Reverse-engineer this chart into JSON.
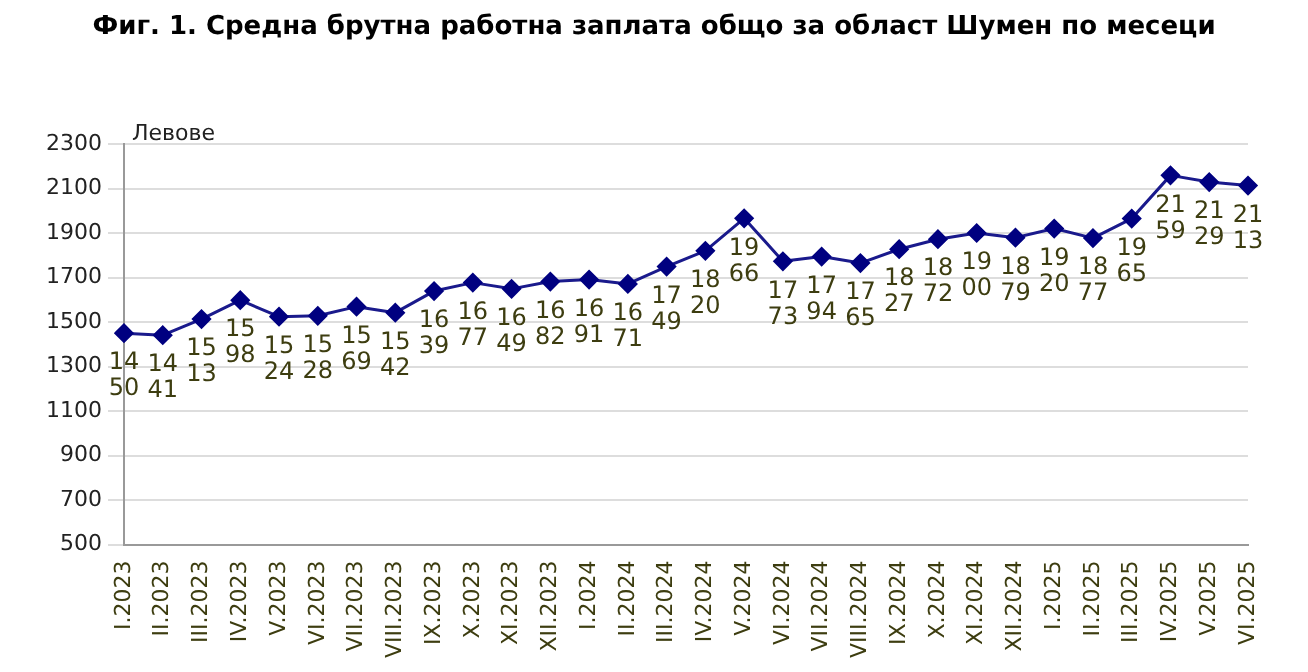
{
  "chart_data": {
    "type": "line",
    "title": "Фиг. 1. Средна брутна работна заплата общо за област Шумен по месеци",
    "ylabel": "Левове",
    "categories": [
      "I.2023",
      "II.2023",
      "III.2023",
      "IV.2023",
      "V.2023",
      "VI.2023",
      "VII.2023",
      "VIII.2023",
      "IX.2023",
      "X.2023",
      "XI.2023",
      "XII.2023",
      "I.2024",
      "II.2024",
      "III.2024",
      "IV.2024",
      "V.2024",
      "VI.2024",
      "VII.2024",
      "VIII.2024",
      "IX.2024",
      "X.2024",
      "XI.2024",
      "XII.2024",
      "I.2025",
      "II.2025",
      "III.2025",
      "IV.2025",
      "V.2025",
      "VI.2025"
    ],
    "series": [
      {
        "color": "#1a1a8c",
        "values": [
          1450,
          1441,
          1513,
          1598,
          1524,
          1528,
          1569,
          1542,
          1639,
          1677,
          1649,
          1682,
          1691,
          1671,
          1749,
          1820,
          1966,
          1773,
          1794,
          1765,
          1827,
          1872,
          1900,
          1879,
          1920,
          1877,
          1965,
          2159,
          2129,
          2113
        ]
      }
    ],
    "ylim": [
      500,
      2300
    ],
    "yticks": [
      500,
      700,
      900,
      1100,
      1300,
      1500,
      1700,
      1900,
      2100,
      2300
    ],
    "grid": "y",
    "legend": false,
    "marker": "diamond",
    "line_style": "solid",
    "data_labels": true
  }
}
